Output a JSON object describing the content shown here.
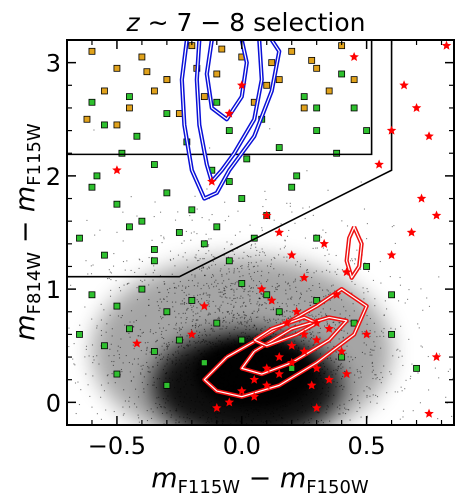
{
  "chart_data": {
    "type": "scatter",
    "title": "z ~ 7 − 8 selection",
    "title_parts": {
      "var": "z",
      "rest": " ∼ 7 − 8 selection"
    },
    "xlabel": "m_F115W − m_F150W",
    "ylabel": "m_F814W − m_F115W",
    "xlabel_parts": {
      "m1": "m",
      "s1": "F115W",
      "op": " − ",
      "m2": "m",
      "s2": "F150W"
    },
    "ylabel_parts": {
      "m1": "m",
      "s1": "F814W",
      "op": " − ",
      "m2": "m",
      "s2": "F115W"
    },
    "xlim": [
      -0.7,
      0.85
    ],
    "ylim": [
      -0.2,
      3.2
    ],
    "xticks": [
      -0.5,
      0.0,
      0.5
    ],
    "xtick_labels": [
      "−0.5",
      "0.0",
      "0.5"
    ],
    "yticks": [
      0,
      1,
      2,
      3
    ],
    "ytick_labels": [
      "0",
      "1",
      "2",
      "3"
    ],
    "grid": false,
    "selection_box": {
      "vertices": [
        [
          -0.7,
          1.11
        ],
        [
          -0.25,
          1.11
        ],
        [
          0.6,
          2.05
        ],
        [
          0.6,
          3.2
        ]
      ],
      "line_color": "#000000"
    },
    "inner_box": {
      "vertices": [
        [
          -0.7,
          2.19
        ],
        [
          0.52,
          2.19
        ],
        [
          0.52,
          3.2
        ]
      ],
      "line_color": "#000000"
    },
    "colors": {
      "background_points": "#000000",
      "green_points": "#2ec02e",
      "orange_points": "#e0a21c",
      "star_points": "#ff0000",
      "blue_contours": "#0a10d8",
      "red_contours": "#ee1111"
    },
    "series": [
      {
        "marker": "square",
        "color": "#2ec02e",
        "points": [
          [
            -0.55,
            2.45
          ],
          [
            -0.48,
            2.2
          ],
          [
            -0.42,
            2.35
          ],
          [
            -0.35,
            2.1
          ],
          [
            -0.3,
            2.55
          ],
          [
            -0.22,
            2.3
          ],
          [
            -0.12,
            2.05
          ],
          [
            -0.05,
            2.4
          ],
          [
            0.02,
            2.15
          ],
          [
            0.08,
            2.5
          ],
          [
            0.15,
            2.25
          ],
          [
            0.22,
            2.0
          ],
          [
            0.3,
            2.4
          ],
          [
            0.38,
            2.2
          ],
          [
            0.45,
            2.6
          ],
          [
            -0.6,
            1.9
          ],
          [
            -0.5,
            1.75
          ],
          [
            -0.4,
            1.6
          ],
          [
            -0.3,
            1.85
          ],
          [
            -0.2,
            1.7
          ],
          [
            -0.1,
            1.55
          ],
          [
            0.0,
            1.8
          ],
          [
            0.1,
            1.65
          ],
          [
            0.2,
            1.9
          ],
          [
            -0.65,
            1.45
          ],
          [
            -0.55,
            1.3
          ],
          [
            -0.45,
            1.55
          ],
          [
            -0.35,
            1.35
          ],
          [
            -0.25,
            1.5
          ],
          [
            -0.15,
            1.4
          ],
          [
            -0.05,
            1.25
          ],
          [
            0.05,
            1.45
          ],
          [
            -0.6,
            0.95
          ],
          [
            -0.5,
            0.85
          ],
          [
            -0.4,
            1.0
          ],
          [
            -0.3,
            0.8
          ],
          [
            -0.2,
            0.9
          ],
          [
            -0.1,
            0.7
          ],
          [
            0.0,
            1.05
          ],
          [
            0.1,
            0.95
          ],
          [
            -0.65,
            0.6
          ],
          [
            -0.55,
            0.5
          ],
          [
            -0.45,
            0.65
          ],
          [
            -0.35,
            0.45
          ],
          [
            -0.25,
            0.55
          ],
          [
            -0.15,
            0.35
          ],
          [
            0.0,
            0.55
          ],
          [
            0.15,
            0.8
          ],
          [
            0.3,
            0.9
          ],
          [
            0.45,
            0.7
          ],
          [
            -0.5,
            0.25
          ],
          [
            -0.3,
            0.15
          ],
          [
            0.2,
            0.3
          ],
          [
            0.4,
            0.4
          ],
          [
            0.6,
            0.6
          ],
          [
            0.7,
            0.3
          ],
          [
            -0.45,
            2.7
          ],
          [
            -0.3,
            2.85
          ],
          [
            0.25,
            2.7
          ],
          [
            0.4,
            2.9
          ],
          [
            -0.6,
            2.65
          ],
          [
            -0.1,
            2.65
          ],
          [
            0.3,
            2.6
          ],
          [
            0.5,
            2.4
          ],
          [
            -0.35,
            1.25
          ],
          [
            0.3,
            1.45
          ],
          [
            0.5,
            1.2
          ],
          [
            0.6,
            0.95
          ],
          [
            -0.58,
            2.0
          ],
          [
            -0.05,
            1.95
          ]
        ]
      },
      {
        "marker": "square",
        "color": "#e0a21c",
        "points": [
          [
            -0.6,
            3.1
          ],
          [
            -0.5,
            2.95
          ],
          [
            -0.4,
            3.05
          ],
          [
            -0.3,
            2.85
          ],
          [
            -0.2,
            3.15
          ],
          [
            -0.1,
            2.9
          ],
          [
            0.0,
            3.05
          ],
          [
            0.1,
            2.8
          ],
          [
            0.2,
            3.1
          ],
          [
            0.3,
            2.95
          ],
          [
            0.4,
            3.15
          ],
          [
            -0.55,
            2.75
          ],
          [
            -0.45,
            2.6
          ],
          [
            -0.35,
            2.75
          ],
          [
            -0.25,
            2.55
          ],
          [
            -0.15,
            2.7
          ],
          [
            0.05,
            2.65
          ],
          [
            0.15,
            2.85
          ],
          [
            0.25,
            2.6
          ],
          [
            0.35,
            2.75
          ],
          [
            -0.62,
            2.5
          ],
          [
            -0.5,
            2.45
          ],
          [
            -0.18,
            2.95
          ],
          [
            0.12,
            3.0
          ],
          [
            0.45,
            2.85
          ],
          [
            -0.08,
            3.12
          ],
          [
            0.28,
            3.02
          ],
          [
            -0.38,
            2.92
          ]
        ]
      },
      {
        "marker": "star",
        "color": "#ff0000",
        "points": [
          [
            0.0,
            0.1
          ],
          [
            0.05,
            0.2
          ],
          [
            0.1,
            0.3
          ],
          [
            0.15,
            0.4
          ],
          [
            0.2,
            0.5
          ],
          [
            0.25,
            0.6
          ],
          [
            0.3,
            0.7
          ],
          [
            0.1,
            0.15
          ],
          [
            0.15,
            0.25
          ],
          [
            0.2,
            0.35
          ],
          [
            0.25,
            0.45
          ],
          [
            0.3,
            0.55
          ],
          [
            0.35,
            0.65
          ],
          [
            0.05,
            0.05
          ],
          [
            -0.05,
            0.0
          ],
          [
            -0.1,
            -0.05
          ],
          [
            0.18,
            0.7
          ],
          [
            0.22,
            0.8
          ],
          [
            0.12,
            0.9
          ],
          [
            0.08,
            1.0
          ],
          [
            0.25,
            1.1
          ],
          [
            0.2,
            1.3
          ],
          [
            0.15,
            1.5
          ],
          [
            0.1,
            1.65
          ],
          [
            0.3,
            0.3
          ],
          [
            0.4,
            0.45
          ],
          [
            0.35,
            0.2
          ],
          [
            0.28,
            0.15
          ],
          [
            0.42,
            0.25
          ],
          [
            0.5,
            0.6
          ],
          [
            -0.15,
            0.85
          ],
          [
            -0.2,
            0.6
          ],
          [
            0.45,
            3.05
          ],
          [
            0.82,
            3.15
          ],
          [
            0.6,
            2.4
          ],
          [
            0.7,
            2.6
          ],
          [
            0.65,
            2.8
          ],
          [
            0.75,
            2.35
          ],
          [
            0.55,
            2.1
          ],
          [
            0.72,
            1.8
          ],
          [
            0.78,
            1.65
          ],
          [
            0.68,
            1.5
          ],
          [
            0.6,
            1.3
          ],
          [
            0.78,
            0.4
          ],
          [
            0.75,
            -0.1
          ],
          [
            0.38,
            0.95
          ],
          [
            0.42,
            1.15
          ],
          [
            0.33,
            1.4
          ],
          [
            -0.12,
            1.95
          ],
          [
            -0.05,
            2.55
          ],
          [
            0.0,
            2.8
          ],
          [
            -0.5,
            2.05
          ],
          [
            -0.42,
            0.52
          ],
          [
            0.3,
            -0.05
          ]
        ]
      }
    ],
    "contours": [
      {
        "color": "#0a10d8",
        "style": "double-line",
        "paths": [
          [
            [
              -0.22,
              3.2
            ],
            [
              -0.24,
              2.85
            ],
            [
              -0.23,
              2.45
            ],
            [
              -0.2,
              2.05
            ],
            [
              -0.15,
              1.8
            ],
            [
              -0.1,
              1.85
            ],
            [
              -0.05,
              2.05
            ],
            [
              0.05,
              2.35
            ],
            [
              0.12,
              2.75
            ],
            [
              0.15,
              3.1
            ],
            [
              0.12,
              3.2
            ]
          ],
          [
            [
              -0.17,
              3.2
            ],
            [
              -0.18,
              2.85
            ],
            [
              -0.17,
              2.45
            ],
            [
              -0.14,
              2.1
            ],
            [
              -0.12,
              1.95
            ],
            [
              -0.08,
              2.05
            ],
            [
              -0.03,
              2.2
            ],
            [
              0.05,
              2.5
            ],
            [
              0.08,
              2.85
            ],
            [
              0.07,
              3.2
            ]
          ],
          [
            [
              -0.12,
              3.2
            ],
            [
              -0.14,
              2.9
            ],
            [
              -0.12,
              2.6
            ],
            [
              -0.06,
              2.5
            ],
            [
              0.0,
              2.7
            ],
            [
              0.02,
              3.0
            ],
            [
              0.0,
              3.2
            ]
          ]
        ]
      },
      {
        "color": "#ee1111",
        "style": "double-line",
        "paths": [
          [
            [
              -0.06,
              0.4
            ],
            [
              0.1,
              0.6
            ],
            [
              0.3,
              0.85
            ],
            [
              0.4,
              1.0
            ],
            [
              0.5,
              0.85
            ],
            [
              0.45,
              0.6
            ],
            [
              0.3,
              0.35
            ],
            [
              0.15,
              0.15
            ],
            [
              0.0,
              0.05
            ],
            [
              -0.1,
              0.1
            ],
            [
              -0.15,
              0.2
            ],
            [
              -0.06,
              0.4
            ]
          ],
          [
            [
              0.05,
              0.45
            ],
            [
              0.2,
              0.65
            ],
            [
              0.35,
              0.75
            ],
            [
              0.42,
              0.72
            ],
            [
              0.35,
              0.55
            ],
            [
              0.2,
              0.35
            ],
            [
              0.08,
              0.25
            ],
            [
              0.0,
              0.3
            ],
            [
              0.05,
              0.45
            ]
          ],
          [
            [
              0.05,
              0.55
            ],
            [
              0.12,
              0.65
            ],
            [
              0.25,
              0.75
            ],
            [
              0.3,
              0.7
            ],
            [
              0.22,
              0.6
            ],
            [
              0.1,
              0.5
            ],
            [
              0.05,
              0.55
            ]
          ],
          [
            [
              0.45,
              1.55
            ],
            [
              0.48,
              1.4
            ],
            [
              0.47,
              1.2
            ],
            [
              0.44,
              1.1
            ],
            [
              0.42,
              1.25
            ],
            [
              0.43,
              1.45
            ],
            [
              0.45,
              1.55
            ]
          ]
        ]
      }
    ]
  }
}
